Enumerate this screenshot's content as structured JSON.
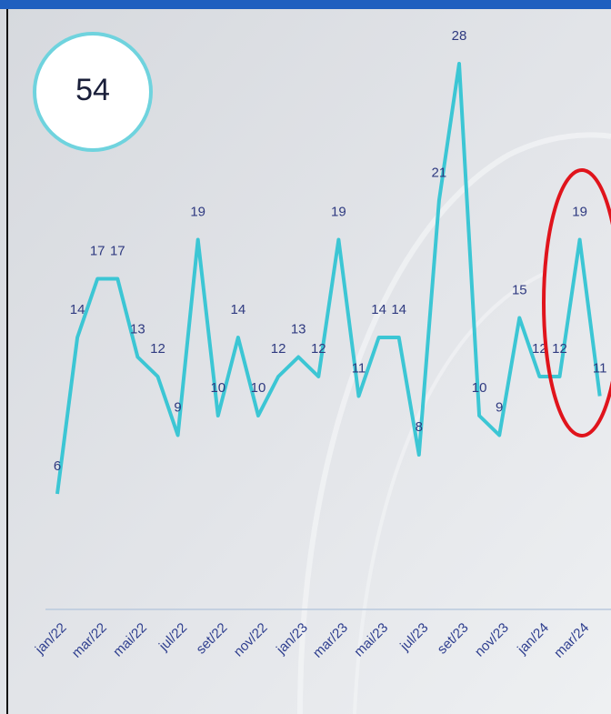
{
  "kpi": 54,
  "chart_data": {
    "type": "line",
    "categories": [
      "jan/22",
      null,
      "mar/22",
      null,
      "mai/22",
      null,
      "jul/22",
      null,
      "set/22",
      null,
      "nov/22",
      null,
      "jan/23",
      null,
      "mar/23",
      null,
      "mai/23",
      null,
      "jul/23",
      null,
      "set/23",
      null,
      "nov/23",
      null,
      "jan/24",
      null,
      "mar/24",
      null
    ],
    "values": [
      6,
      14,
      17,
      17,
      13,
      12,
      9,
      19,
      10,
      14,
      10,
      12,
      13,
      12,
      19,
      11,
      14,
      14,
      8,
      21,
      28,
      10,
      9,
      15,
      12,
      12,
      19,
      11
    ],
    "color": "#3cc6d4",
    "ylim": [
      0,
      30
    ]
  }
}
